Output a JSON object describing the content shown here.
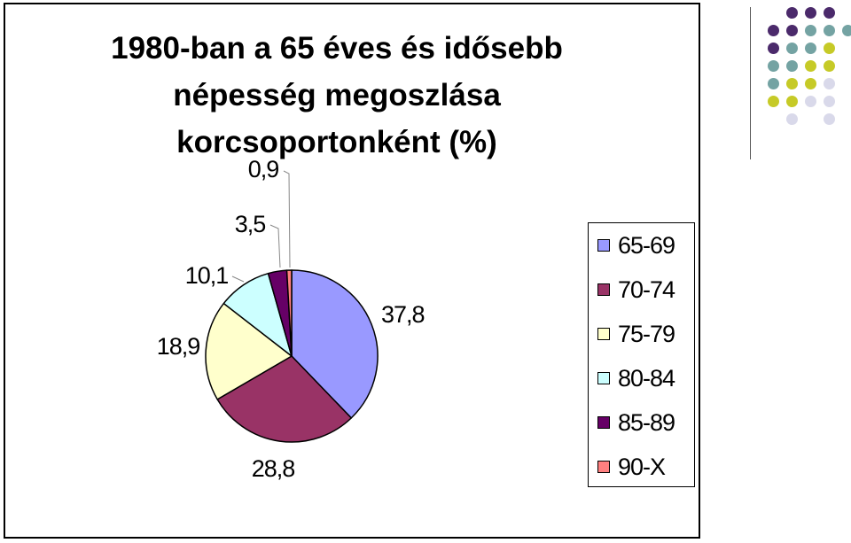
{
  "slide": {
    "title_lines": [
      "1980-ban a 65 éves és idősebb",
      "népesség megoszlása",
      "korcsoportonként (%)"
    ]
  },
  "chart_data": {
    "type": "pie",
    "title": "1980-ban a 65 éves és idősebb népesség megoszlása korcsoportonként (%)",
    "categories": [
      "65-69",
      "70-74",
      "75-79",
      "80-84",
      "85-89",
      "90-X"
    ],
    "values": [
      37.8,
      28.8,
      18.9,
      10.1,
      3.5,
      0.9
    ],
    "value_labels": [
      "37,8",
      "28,8",
      "18,9",
      "10,1",
      "3,5",
      "0,9"
    ],
    "colors": [
      "#9999ff",
      "#993366",
      "#ffffcc",
      "#ccffff",
      "#660066",
      "#ff8080"
    ],
    "legend_position": "right"
  },
  "decoration": {
    "dot_colors": [
      "#4b2a6b",
      "#74a3a3",
      "#c6ca27",
      "#d9d9ea"
    ]
  }
}
